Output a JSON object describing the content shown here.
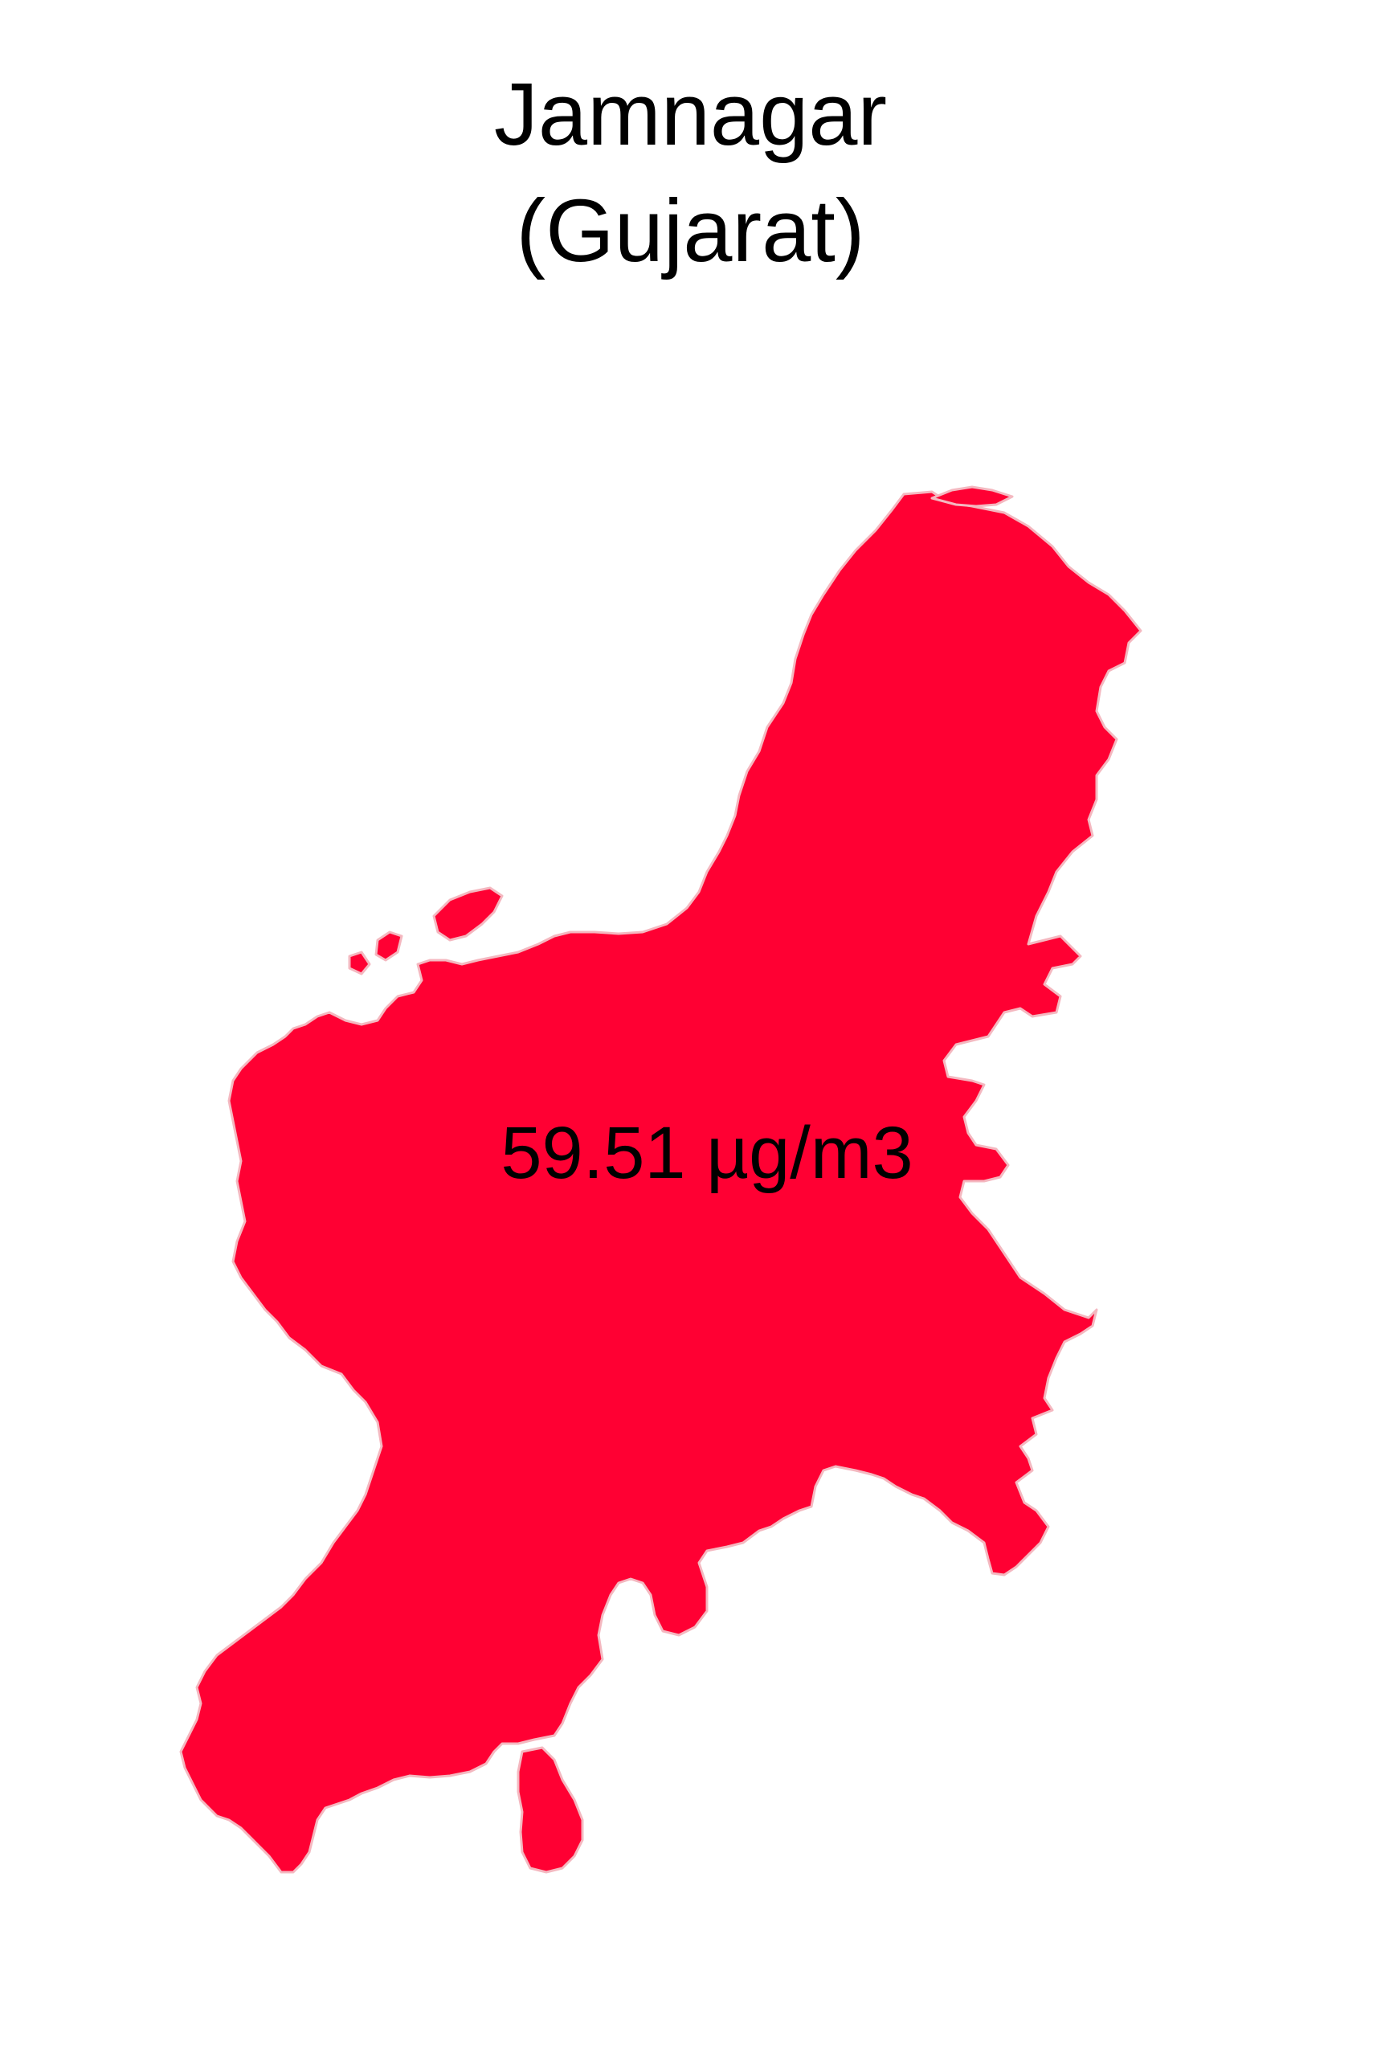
{
  "map": {
    "title_line1": "Jamnagar",
    "title_line2": "(Gujarat)",
    "region_value_label": "59.51 µg/m3",
    "fill_color": "#ff0033",
    "stroke_color": "#f4b8c0",
    "background_color": "#ffffff"
  }
}
